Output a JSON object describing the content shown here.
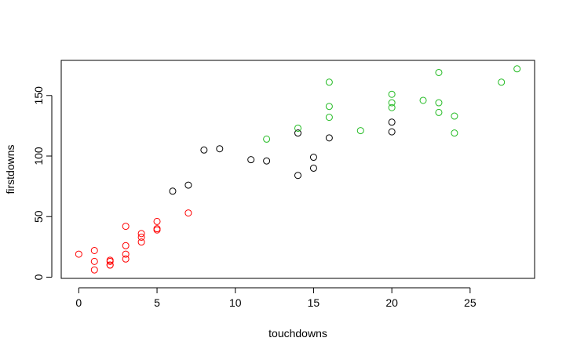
{
  "chart_data": {
    "type": "scatter",
    "title": "",
    "xlabel": "touchdowns",
    "ylabel": "firstdowns",
    "xlim": [
      -1.12,
      29.12
    ],
    "ylim": [
      -1,
      179
    ],
    "x_ticks": [
      0,
      5,
      10,
      15,
      20,
      25
    ],
    "y_ticks": [
      0,
      50,
      100,
      150
    ],
    "grid": false,
    "legend": "none",
    "series": [
      {
        "color": "#ff0000",
        "points": [
          [
            0,
            19
          ],
          [
            1,
            22
          ],
          [
            1,
            13
          ],
          [
            1,
            6
          ],
          [
            2,
            14
          ],
          [
            2,
            13
          ],
          [
            2,
            10
          ],
          [
            2,
            10
          ],
          [
            3,
            42
          ],
          [
            3,
            26
          ],
          [
            3,
            19
          ],
          [
            3,
            15
          ],
          [
            4,
            36
          ],
          [
            4,
            33
          ],
          [
            4,
            29
          ],
          [
            5,
            46
          ],
          [
            5,
            40
          ],
          [
            5,
            39
          ],
          [
            7,
            53
          ]
        ]
      },
      {
        "color": "#000000",
        "points": [
          [
            6,
            71
          ],
          [
            7,
            76
          ],
          [
            8,
            105
          ],
          [
            9,
            106
          ],
          [
            11,
            97
          ],
          [
            12,
            96
          ],
          [
            14,
            119
          ],
          [
            14,
            84
          ],
          [
            15,
            99
          ],
          [
            15,
            90
          ],
          [
            16,
            115
          ],
          [
            20,
            128
          ],
          [
            20,
            120
          ]
        ]
      },
      {
        "color": "#22bb22",
        "points": [
          [
            12,
            114
          ],
          [
            14,
            123
          ],
          [
            16,
            161
          ],
          [
            16,
            141
          ],
          [
            16,
            132
          ],
          [
            18,
            121
          ],
          [
            20,
            151
          ],
          [
            20,
            144
          ],
          [
            20,
            140
          ],
          [
            22,
            146
          ],
          [
            23,
            169
          ],
          [
            23,
            144
          ],
          [
            23,
            136
          ],
          [
            24,
            133
          ],
          [
            24,
            119
          ],
          [
            27,
            161
          ],
          [
            28,
            172
          ]
        ]
      }
    ]
  }
}
